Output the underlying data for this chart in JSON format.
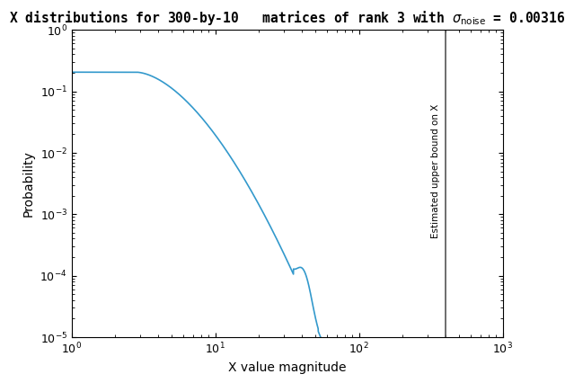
{
  "xlabel": "X value magnitude",
  "ylabel": "Probability",
  "xlim": [
    1,
    1000
  ],
  "ylim": [
    1e-05,
    1.0
  ],
  "vline_x": 400,
  "vline_color": "#555555",
  "vline_label": "Estimated upper bound on X",
  "curve_color": "#3399cc",
  "curve_linewidth": 1.2,
  "background_color": "#ffffff",
  "title": "X distributions for 300-by-10   matrices of rank 3 with $\\sigma_{\\mathrm{noise}}$ = 0.00316",
  "title_fontsize": 10.5,
  "axis_fontsize": 10
}
